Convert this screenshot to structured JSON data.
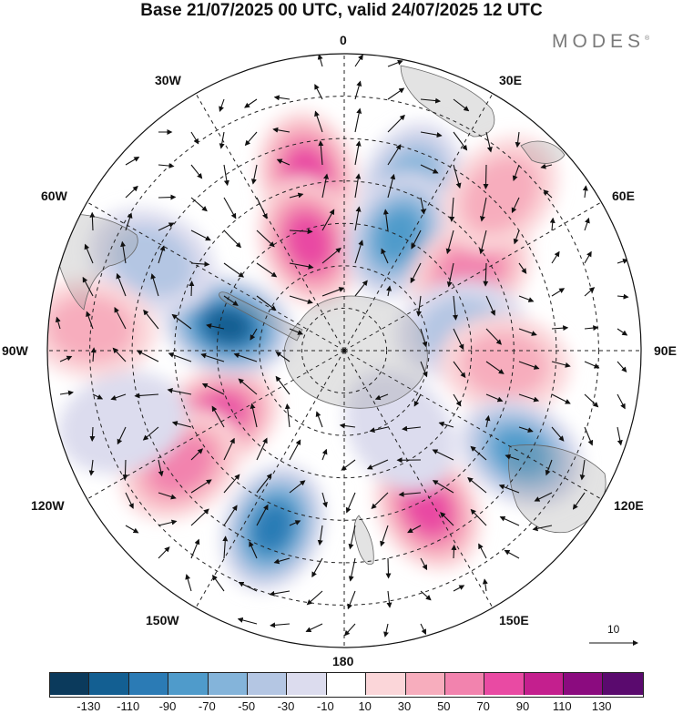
{
  "title": "Base 21/07/2025 00 UTC, valid 24/07/2025 12 UTC",
  "brand": "MODES",
  "brand_mark": "®",
  "longitude_labels": {
    "lon_0": "0",
    "lon_30e": "30E",
    "lon_60e": "60E",
    "lon_90e": "90E",
    "lon_120e": "120E",
    "lon_150e": "150E",
    "lon_180": "180",
    "lon_150w": "150W",
    "lon_120w": "120W",
    "lon_90w": "90W",
    "lon_60w": "60W",
    "lon_30w": "30W"
  },
  "vector_scale": {
    "value": "10"
  },
  "colorbar": {
    "colors": [
      "#0b3a5c",
      "#135f92",
      "#2b7bb5",
      "#4f9bcb",
      "#84b4da",
      "#b4c6e3",
      "#dcdcee",
      "#ffffff",
      "#fbd6d9",
      "#f7adbd",
      "#f283ae",
      "#e94aa3",
      "#c41f8e",
      "#8b0b7f",
      "#5a0a6e"
    ],
    "ticks": [
      "-130",
      "-110",
      "-90",
      "-70",
      "-50",
      "-30",
      "-10",
      "10",
      "30",
      "50",
      "70",
      "90",
      "110",
      "130"
    ]
  },
  "anomaly_fields": [
    {
      "name": "positive-anomaly",
      "sign": "positive",
      "lon": -12,
      "lat": -48,
      "peak": 85
    },
    {
      "name": "positive-anomaly",
      "sign": "positive",
      "lon": -18,
      "lat": -63,
      "peak": 70
    },
    {
      "name": "negative-anomaly",
      "sign": "negative",
      "lon": 22,
      "lat": -48,
      "peak": -65
    },
    {
      "name": "negative-anomaly",
      "sign": "negative",
      "lon": 25,
      "lat": -60,
      "peak": -80
    },
    {
      "name": "positive-anomaly",
      "sign": "positive",
      "lon": 58,
      "lat": -55,
      "peak": 60
    },
    {
      "name": "positive-anomaly",
      "sign": "positive",
      "lon": 45,
      "lat": -38,
      "peak": 30
    },
    {
      "name": "negative-anomaly",
      "sign": "negative",
      "lon": 80,
      "lat": -62,
      "peak": -30
    },
    {
      "name": "positive-anomaly",
      "sign": "positive",
      "lon": 95,
      "lat": -52,
      "peak": 30
    },
    {
      "name": "negative-anomaly",
      "sign": "negative",
      "lon": 120,
      "lat": -42,
      "peak": -85
    },
    {
      "name": "positive-anomaly",
      "sign": "positive",
      "lon": 152,
      "lat": -48,
      "peak": 75
    },
    {
      "name": "negative-anomaly",
      "sign": "negative",
      "lon": 145,
      "lat": -67,
      "peak": -25
    },
    {
      "name": "negative-anomaly",
      "sign": "negative",
      "lon": -158,
      "lat": -45,
      "peak": -90
    },
    {
      "name": "positive-anomaly",
      "sign": "positive",
      "lon": -118,
      "lat": -56,
      "peak": 85
    },
    {
      "name": "positive-anomaly",
      "sign": "positive",
      "lon": -125,
      "lat": -43,
      "peak": 60
    },
    {
      "name": "negative-anomaly",
      "sign": "negative",
      "lon": -78,
      "lat": -62,
      "peak": -110
    },
    {
      "name": "negative-anomaly",
      "sign": "negative",
      "lon": -65,
      "lat": -40,
      "peak": -30
    },
    {
      "name": "positive-anomaly",
      "sign": "positive",
      "lon": -85,
      "lat": -30,
      "peak": 40
    },
    {
      "name": "negative-anomaly",
      "sign": "negative",
      "lon": -108,
      "lat": -35,
      "peak": -20
    }
  ]
}
